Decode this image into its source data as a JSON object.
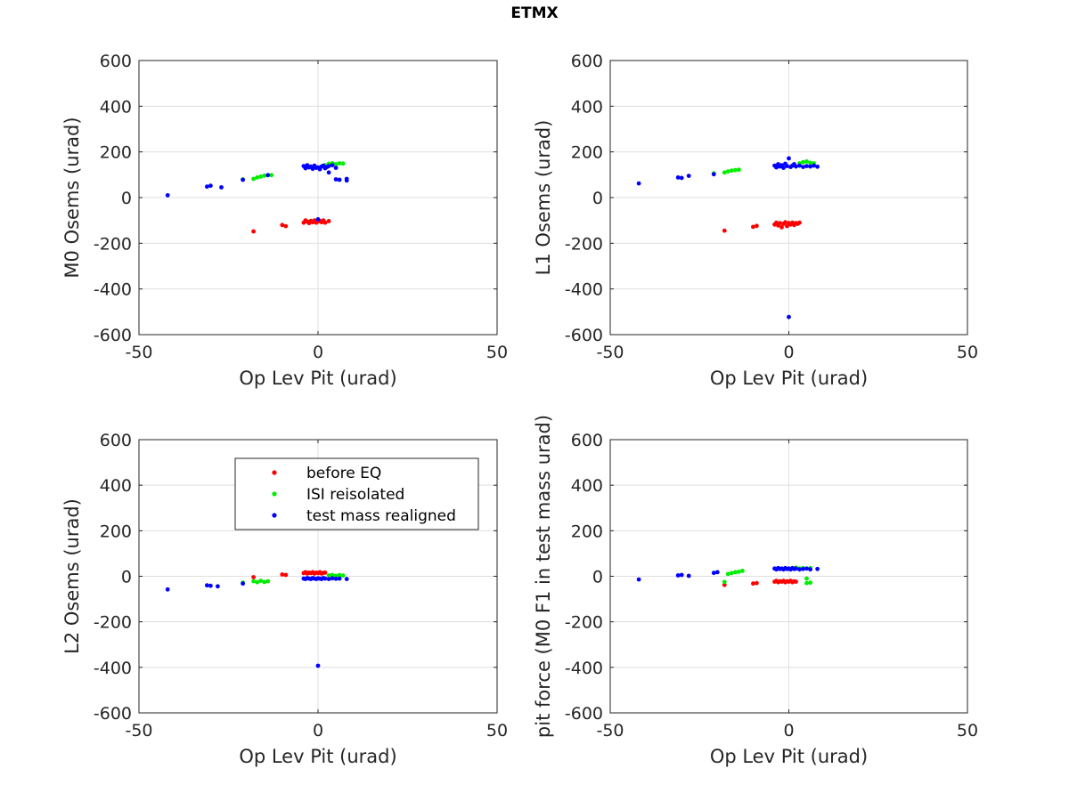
{
  "title": "ETMX",
  "colors": {
    "before EQ": "#ff0000",
    "ISI reisolated": "#00ee00",
    "test mass realigned": "#0000ff"
  },
  "chart_data": [
    {
      "type": "scatter",
      "xlabel": "Op Lev Pit (urad)",
      "ylabel": "M0 Osems (urad)",
      "xlim": [
        -50,
        50
      ],
      "ylim": [
        -600,
        600
      ],
      "xticks": [
        -50,
        0,
        50
      ],
      "yticks": [
        -600,
        -400,
        -200,
        0,
        200,
        400,
        600
      ],
      "grid": true,
      "series": [
        {
          "name": "before EQ",
          "points": [
            [
              -18,
              -148
            ],
            [
              -10,
              -120
            ],
            [
              -9,
              -125
            ],
            [
              -4,
              -110
            ],
            [
              -3.5,
              -100
            ],
            [
              -3,
              -105
            ],
            [
              -2.5,
              -112
            ],
            [
              -2,
              -102
            ],
            [
              -1.5,
              -108
            ],
            [
              -1,
              -100
            ],
            [
              -0.5,
              -110
            ],
            [
              0,
              -105
            ],
            [
              0.5,
              -102
            ],
            [
              1,
              -108
            ],
            [
              1.5,
              -100
            ],
            [
              2,
              -110
            ],
            [
              3,
              -103
            ]
          ]
        },
        {
          "name": "ISI reisolated",
          "points": [
            [
              -21,
              80
            ],
            [
              -18,
              82
            ],
            [
              -17,
              88
            ],
            [
              -16,
              92
            ],
            [
              -15,
              96
            ],
            [
              -13,
              98
            ],
            [
              2,
              142
            ],
            [
              3,
              148
            ],
            [
              4,
              150
            ],
            [
              5,
              146
            ],
            [
              6,
              150
            ],
            [
              7,
              149
            ]
          ]
        },
        {
          "name": "test mass realigned",
          "points": [
            [
              -42,
              10
            ],
            [
              -31,
              48
            ],
            [
              -30,
              52
            ],
            [
              -27,
              45
            ],
            [
              -21,
              78
            ],
            [
              -14,
              98
            ],
            [
              -4,
              138
            ],
            [
              -3.5,
              128
            ],
            [
              -3,
              142
            ],
            [
              -2.5,
              132
            ],
            [
              -2,
              136
            ],
            [
              -1.5,
              126
            ],
            [
              -1,
              140
            ],
            [
              -0.5,
              130
            ],
            [
              0,
              132
            ],
            [
              0.5,
              124
            ],
            [
              1,
              136
            ],
            [
              1.5,
              140
            ],
            [
              2,
              128
            ],
            [
              2.5,
              134
            ],
            [
              3,
              138
            ],
            [
              3,
              110
            ],
            [
              4,
              142
            ],
            [
              5,
              130
            ],
            [
              5,
              80
            ],
            [
              6,
              78
            ],
            [
              8,
              82
            ],
            [
              8,
              75
            ],
            [
              0,
              -95
            ]
          ]
        }
      ]
    },
    {
      "type": "scatter",
      "xlabel": "Op Lev Pit (urad)",
      "ylabel": "L1 Osems (urad)",
      "xlim": [
        -50,
        50
      ],
      "ylim": [
        -600,
        600
      ],
      "xticks": [
        -50,
        0,
        50
      ],
      "yticks": [
        -600,
        -400,
        -200,
        0,
        200,
        400,
        600
      ],
      "grid": true,
      "series": [
        {
          "name": "before EQ",
          "points": [
            [
              -18,
              -145
            ],
            [
              -10,
              -128
            ],
            [
              -9,
              -124
            ],
            [
              -4,
              -118
            ],
            [
              -3.5,
              -110
            ],
            [
              -3,
              -122
            ],
            [
              -2.5,
              -112
            ],
            [
              -2,
              -130
            ],
            [
              -1.5,
              -115
            ],
            [
              -1,
              -108
            ],
            [
              -0.5,
              -125
            ],
            [
              0,
              -112
            ],
            [
              0.5,
              -118
            ],
            [
              1,
              -110
            ],
            [
              1.5,
              -120
            ],
            [
              2,
              -112
            ],
            [
              2.5,
              -115
            ],
            [
              3,
              -110
            ]
          ]
        },
        {
          "name": "ISI reisolated",
          "points": [
            [
              -21,
              106
            ],
            [
              -18,
              110
            ],
            [
              -17,
              114
            ],
            [
              -16,
              118
            ],
            [
              -15,
              120
            ],
            [
              -14,
              122
            ],
            [
              3,
              150
            ],
            [
              4,
              155
            ],
            [
              5,
              158
            ],
            [
              6,
              152
            ],
            [
              7,
              150
            ]
          ]
        },
        {
          "name": "test mass realigned",
          "points": [
            [
              -42,
              62
            ],
            [
              -31,
              88
            ],
            [
              -30,
              86
            ],
            [
              -28,
              95
            ],
            [
              -21,
              102
            ],
            [
              -4,
              140
            ],
            [
              -3.5,
              132
            ],
            [
              -3,
              146
            ],
            [
              -2.5,
              136
            ],
            [
              -2,
              142
            ],
            [
              -1.5,
              130
            ],
            [
              -1,
              148
            ],
            [
              -0.5,
              138
            ],
            [
              0,
              172
            ],
            [
              0.5,
              134
            ],
            [
              1,
              140
            ],
            [
              1.5,
              146
            ],
            [
              2,
              136
            ],
            [
              3,
              140
            ],
            [
              4,
              134
            ],
            [
              5,
              138
            ],
            [
              6,
              136
            ],
            [
              7,
              140
            ],
            [
              8,
              135
            ],
            [
              0,
              -523
            ]
          ]
        }
      ]
    },
    {
      "type": "scatter",
      "xlabel": "Op Lev Pit (urad)",
      "ylabel": "L2 Osems (urad)",
      "xlim": [
        -50,
        50
      ],
      "ylim": [
        -600,
        600
      ],
      "xticks": [
        -50,
        0,
        50
      ],
      "yticks": [
        -600,
        -400,
        -200,
        0,
        200,
        400,
        600
      ],
      "grid": true,
      "legend": {
        "position": "upper-right",
        "entries": [
          "before EQ",
          "ISI reisolated",
          "test mass realigned"
        ]
      },
      "series": [
        {
          "name": "before EQ",
          "points": [
            [
              -18,
              -4
            ],
            [
              -10,
              8
            ],
            [
              -9,
              6
            ],
            [
              -4,
              14
            ],
            [
              -3.5,
              18
            ],
            [
              -3,
              12
            ],
            [
              -2.5,
              16
            ],
            [
              -2,
              14
            ],
            [
              -1.5,
              18
            ],
            [
              -1,
              12
            ],
            [
              -0.5,
              16
            ],
            [
              0,
              14
            ],
            [
              0.5,
              18
            ],
            [
              1,
              12
            ],
            [
              1.5,
              15
            ],
            [
              2,
              16
            ]
          ]
        },
        {
          "name": "ISI reisolated",
          "points": [
            [
              -21,
              -28
            ],
            [
              -18,
              -22
            ],
            [
              -17,
              -26
            ],
            [
              -16,
              -20
            ],
            [
              -15,
              -25
            ],
            [
              -14,
              -22
            ],
            [
              3,
              4
            ],
            [
              4,
              6
            ],
            [
              5,
              2
            ],
            [
              6,
              5
            ],
            [
              7,
              3
            ]
          ]
        },
        {
          "name": "test mass realigned",
          "points": [
            [
              -42,
              -58
            ],
            [
              -31,
              -40
            ],
            [
              -30,
              -42
            ],
            [
              -28,
              -44
            ],
            [
              -21,
              -32
            ],
            [
              -4,
              -10
            ],
            [
              -3.5,
              -12
            ],
            [
              -3,
              -8
            ],
            [
              -2.5,
              -10
            ],
            [
              -2,
              -12
            ],
            [
              -1.5,
              -8
            ],
            [
              -1,
              -10
            ],
            [
              -0.5,
              -12
            ],
            [
              0,
              -9
            ],
            [
              0.5,
              -10
            ],
            [
              1,
              -12
            ],
            [
              1.5,
              -8
            ],
            [
              2,
              -10
            ],
            [
              3,
              -12
            ],
            [
              4,
              -9
            ],
            [
              5,
              -11
            ],
            [
              6,
              -10
            ],
            [
              8,
              -12
            ],
            [
              0,
              -393
            ]
          ]
        }
      ]
    },
    {
      "type": "scatter",
      "xlabel": "Op Lev Pit (urad)",
      "ylabel": "pit force (M0 F1 in test mass urad)",
      "xlim": [
        -50,
        50
      ],
      "ylim": [
        -600,
        600
      ],
      "xticks": [
        -50,
        0,
        50
      ],
      "yticks": [
        -600,
        -400,
        -200,
        0,
        200,
        400,
        600
      ],
      "grid": true,
      "series": [
        {
          "name": "before EQ",
          "points": [
            [
              -18,
              -38
            ],
            [
              -10,
              -32
            ],
            [
              -9,
              -30
            ],
            [
              -4,
              -24
            ],
            [
              -3.5,
              -20
            ],
            [
              -3,
              -26
            ],
            [
              -2.5,
              -22
            ],
            [
              -2,
              -24
            ],
            [
              -1.5,
              -20
            ],
            [
              -1,
              -26
            ],
            [
              -0.5,
              -22
            ],
            [
              0,
              -24
            ],
            [
              0.5,
              -20
            ],
            [
              1,
              -26
            ],
            [
              1.5,
              -22
            ],
            [
              2,
              -24
            ]
          ]
        },
        {
          "name": "ISI reisolated",
          "points": [
            [
              -18,
              -25
            ],
            [
              -17,
              10
            ],
            [
              -16,
              14
            ],
            [
              -15,
              18
            ],
            [
              -14,
              20
            ],
            [
              -13,
              24
            ],
            [
              2,
              38
            ],
            [
              3,
              34
            ],
            [
              4,
              36
            ],
            [
              5,
              -10
            ],
            [
              5,
              -30
            ],
            [
              6,
              -28
            ],
            [
              6,
              36
            ]
          ]
        },
        {
          "name": "test mass realigned",
          "points": [
            [
              -42,
              -14
            ],
            [
              -31,
              4
            ],
            [
              -30,
              6
            ],
            [
              -28,
              2
            ],
            [
              -21,
              15
            ],
            [
              -20,
              18
            ],
            [
              -4,
              34
            ],
            [
              -3.5,
              30
            ],
            [
              -3,
              36
            ],
            [
              -2.5,
              32
            ],
            [
              -2,
              34
            ],
            [
              -1.5,
              30
            ],
            [
              -1,
              36
            ],
            [
              -0.5,
              32
            ],
            [
              0,
              34
            ],
            [
              0.5,
              30
            ],
            [
              1,
              36
            ],
            [
              1.5,
              32
            ],
            [
              2,
              34
            ],
            [
              3,
              30
            ],
            [
              4,
              32
            ],
            [
              5,
              34
            ],
            [
              6,
              30
            ],
            [
              8,
              32
            ]
          ]
        }
      ]
    }
  ]
}
